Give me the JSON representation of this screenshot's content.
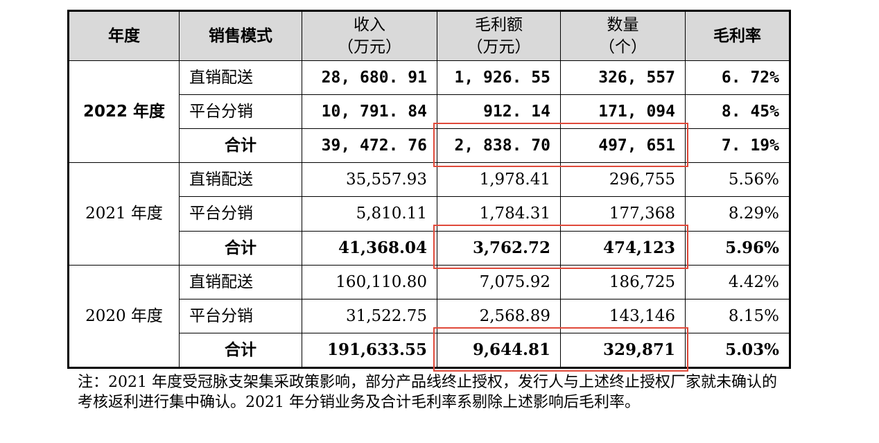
{
  "headers": {
    "year": "年度",
    "mode": "销售模式",
    "revenue": "收入\n（万元）",
    "gross_profit": "毛利额\n（万元）",
    "quantity": "数量\n（个）",
    "margin": "毛利率"
  },
  "groups": [
    {
      "year": "2022 年度",
      "rows": [
        {
          "mode": "直销配送",
          "revenue": "28, 680. 91",
          "gross_profit": "1, 926. 55",
          "quantity": "326, 557",
          "margin": "6. 72%"
        },
        {
          "mode": "平台分销",
          "revenue": "10, 791. 84",
          "gross_profit": "912. 14",
          "quantity": "171, 094",
          "margin": "8. 45%"
        },
        {
          "mode": "合计",
          "revenue": "39, 472. 76",
          "gross_profit": "2, 838. 70",
          "quantity": "497, 651",
          "margin": "7. 19%"
        }
      ]
    },
    {
      "year": "2021 年度",
      "rows": [
        {
          "mode": "直销配送",
          "revenue": "35,557.93",
          "gross_profit": "1,978.41",
          "quantity": "296,755",
          "margin": "5.56%"
        },
        {
          "mode": "平台分销",
          "revenue": "5,810.11",
          "gross_profit": "1,784.31",
          "quantity": "177,368",
          "margin": "8.29%"
        },
        {
          "mode": "合计",
          "revenue": "41,368.04",
          "gross_profit": "3,762.72",
          "quantity": "474,123",
          "margin": "5.96%"
        }
      ]
    },
    {
      "year": "2020 年度",
      "rows": [
        {
          "mode": "直销配送",
          "revenue": "160,110.80",
          "gross_profit": "7,075.92",
          "quantity": "186,725",
          "margin": "4.42%"
        },
        {
          "mode": "平台分销",
          "revenue": "31,522.75",
          "gross_profit": "2,568.89",
          "quantity": "143,146",
          "margin": "8.15%"
        },
        {
          "mode": "合计",
          "revenue": "191,633.55",
          "gross_profit": "9,644.81",
          "quantity": "329,871",
          "margin": "5.03%"
        }
      ]
    }
  ],
  "note": "注：2021 年度受冠脉支架集采政策影响，部分产品线终止授权，发行人与上述终止授权厂家就未确认的考核返利进行集中确认。2021 年分销业务及合计毛利率系剔除上述影响后毛利率。",
  "colors": {
    "header_bg": "#d9d9d9",
    "highlight_border": "#e0493a"
  }
}
